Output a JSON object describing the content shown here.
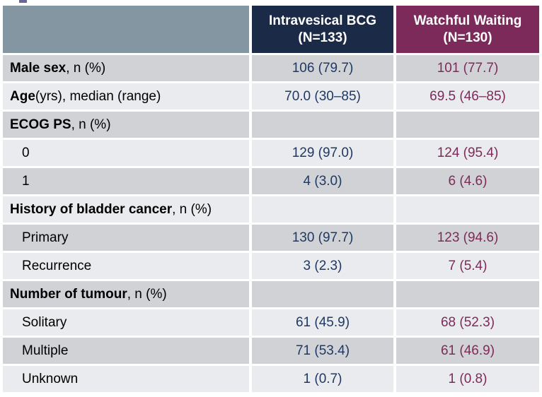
{
  "slide": {
    "title_fragment_note": "cropped title descender mark",
    "colors": {
      "header_empty_bg": "#8596A3",
      "bcg_header_bg": "#1B2A47",
      "ww_header_bg": "#7C2A59",
      "row_dark_bg": "#D1D2D6",
      "row_light_bg": "#EAEBEE",
      "bcg_value_text": "#1F3864",
      "ww_value_text": "#7D2B5A",
      "title_fragment": "#666699"
    }
  },
  "table": {
    "columns": [
      {
        "line1": "Intravesical BCG",
        "line2": "(N=133)"
      },
      {
        "line1": "Watchful Waiting",
        "line2": "(N=130)"
      }
    ],
    "rows": [
      {
        "label_bold": "Male sex",
        "label_rest": ", n (%)",
        "bcg": "106 (79.7)",
        "ww": "101 (77.7)"
      },
      {
        "label_bold": "Age",
        "label_rest": " (yrs), median (range)",
        "bcg": "70.0 (30–85)",
        "ww": "69.5 (46–85)"
      },
      {
        "label_bold": "ECOG PS",
        "label_rest": ", n (%)",
        "bcg": "",
        "ww": ""
      },
      {
        "label_bold": "",
        "label_rest": "0",
        "bcg": "129 (97.0)",
        "ww": "124 (95.4)"
      },
      {
        "label_bold": "",
        "label_rest": "1",
        "bcg": "4 (3.0)",
        "ww": "6 (4.6)"
      },
      {
        "label_bold": "History of bladder cancer",
        "label_rest": ", n (%)",
        "bcg": "",
        "ww": ""
      },
      {
        "label_bold": "",
        "label_rest": "Primary",
        "bcg": "130 (97.7)",
        "ww": "123 (94.6)"
      },
      {
        "label_bold": "",
        "label_rest": "Recurrence",
        "bcg": "3 (2.3)",
        "ww": "7 (5.4)"
      },
      {
        "label_bold": "Number of tumour",
        "label_rest": ", n (%)",
        "bcg": "",
        "ww": ""
      },
      {
        "label_bold": "",
        "label_rest": "Solitary",
        "bcg": "61 (45.9)",
        "ww": "68 (52.3)"
      },
      {
        "label_bold": "",
        "label_rest": "Multiple",
        "bcg": "71 (53.4)",
        "ww": "61 (46.9)"
      },
      {
        "label_bold": "",
        "label_rest": "Unknown",
        "bcg": "1 (0.7)",
        "ww": "1 (0.8)"
      }
    ]
  }
}
